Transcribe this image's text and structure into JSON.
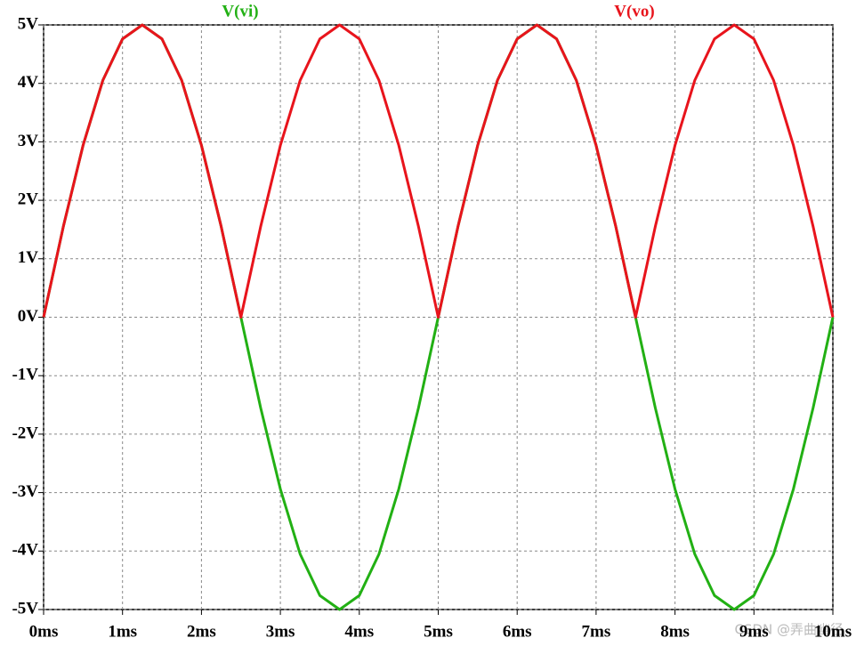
{
  "chart_data": {
    "type": "line",
    "x": [
      0,
      0.25,
      0.5,
      0.75,
      1,
      1.25,
      1.5,
      1.75,
      2,
      2.25,
      2.5,
      2.75,
      3,
      3.25,
      3.5,
      3.75,
      4,
      4.25,
      4.5,
      4.75,
      5,
      5.25,
      5.5,
      5.75,
      6,
      6.25,
      6.5,
      6.75,
      7,
      7.25,
      7.5,
      7.75,
      8,
      8.25,
      8.5,
      8.75,
      9,
      9.25,
      9.5,
      9.75,
      10
    ],
    "series": [
      {
        "name": "V(vi)",
        "color": "#22b014",
        "values": [
          0,
          1.55,
          2.94,
          4.05,
          4.76,
          5,
          4.76,
          4.05,
          2.94,
          1.55,
          0,
          -1.55,
          -2.94,
          -4.05,
          -4.76,
          -5,
          -4.76,
          -4.05,
          -2.94,
          -1.55,
          0,
          1.55,
          2.94,
          4.05,
          4.76,
          5,
          4.76,
          4.05,
          2.94,
          1.55,
          0,
          -1.55,
          -2.94,
          -4.05,
          -4.76,
          -5,
          -4.76,
          -4.05,
          -2.94,
          -1.55,
          0
        ]
      },
      {
        "name": "V(vo)",
        "color": "#e8141c",
        "values": [
          0,
          1.55,
          2.94,
          4.05,
          4.76,
          5,
          4.76,
          4.05,
          2.94,
          1.55,
          0,
          1.55,
          2.94,
          4.05,
          4.76,
          5,
          4.76,
          4.05,
          2.94,
          1.55,
          0,
          1.55,
          2.94,
          4.05,
          4.76,
          5,
          4.76,
          4.05,
          2.94,
          1.55,
          0,
          1.55,
          2.94,
          4.05,
          4.76,
          5,
          4.76,
          4.05,
          2.94,
          1.55,
          0
        ]
      }
    ],
    "xlim": [
      0,
      10
    ],
    "ylim": [
      -5,
      5
    ],
    "xticks": [
      {
        "value": 0,
        "label": "0ms"
      },
      {
        "value": 1,
        "label": "1ms"
      },
      {
        "value": 2,
        "label": "2ms"
      },
      {
        "value": 3,
        "label": "3ms"
      },
      {
        "value": 4,
        "label": "4ms"
      },
      {
        "value": 5,
        "label": "5ms"
      },
      {
        "value": 6,
        "label": "6ms"
      },
      {
        "value": 7,
        "label": "7ms"
      },
      {
        "value": 8,
        "label": "8ms"
      },
      {
        "value": 9,
        "label": "9ms"
      },
      {
        "value": 10,
        "label": "10ms"
      }
    ],
    "yticks": [
      {
        "value": -5,
        "label": "-5V"
      },
      {
        "value": -4,
        "label": "-4V"
      },
      {
        "value": -3,
        "label": "-3V"
      },
      {
        "value": -2,
        "label": "-2V"
      },
      {
        "value": -1,
        "label": "-1V"
      },
      {
        "value": 0,
        "label": "0V"
      },
      {
        "value": 1,
        "label": "1V"
      },
      {
        "value": 2,
        "label": "2V"
      },
      {
        "value": 3,
        "label": "3V"
      },
      {
        "value": 4,
        "label": "4V"
      },
      {
        "value": 5,
        "label": "5V"
      }
    ],
    "grid": true,
    "watermark": "CSDN @弄曲幽径"
  }
}
